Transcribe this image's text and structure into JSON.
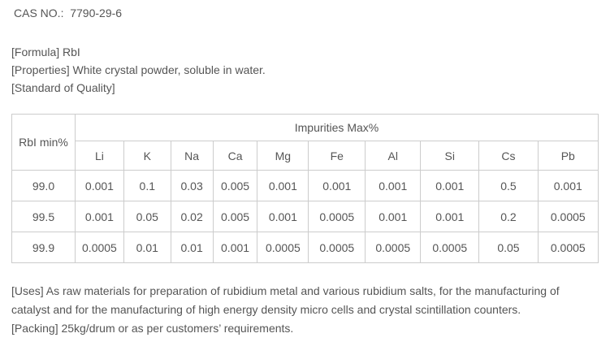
{
  "header": {
    "cas_no": "CAS NO.:  7790-29-6"
  },
  "details": {
    "formula": "[Formula] RbI",
    "properties": "[Properties] White crystal powder, soluble in water.",
    "standard": "[Standard of Quality]"
  },
  "quality_table": {
    "corner_header": "RbI min%",
    "impurities_header": "Impurities Max%",
    "element_columns": [
      "Li",
      "K",
      "Na",
      "Ca",
      "Mg",
      "Fe",
      "Al",
      "Si",
      "Cs",
      "Pb"
    ],
    "column_widths_pct": [
      10.8,
      8.3,
      8.0,
      7.2,
      7.6,
      8.7,
      9.7,
      9.4,
      10.0,
      10.0,
      10.3
    ],
    "rows": [
      {
        "purity": "99.0",
        "values": [
          "0.001",
          "0.1",
          "0.03",
          "0.005",
          "0.001",
          "0.001",
          "0.001",
          "0.001",
          "0.5",
          "0.001"
        ]
      },
      {
        "purity": "99.5",
        "values": [
          "0.001",
          "0.05",
          "0.02",
          "0.005",
          "0.001",
          "0.0005",
          "0.001",
          "0.001",
          "0.2",
          "0.0005"
        ]
      },
      {
        "purity": "99.9",
        "values": [
          "0.0005",
          "0.01",
          "0.01",
          "0.001",
          "0.0005",
          "0.0005",
          "0.0005",
          "0.0005",
          "0.05",
          "0.0005"
        ]
      }
    ]
  },
  "footer": {
    "uses_lines": [
      "[Uses] As raw materials for preparation of rubidium metal and various rubidium salts, for the manufacturing of",
      "catalyst and for the manufacturing of high energy density micro cells and crystal scintillation counters."
    ],
    "packing": "[Packing] 25kg/drum or as per customers’ requirements."
  },
  "colors": {
    "text": "#555555",
    "border": "#cccccc",
    "background": "#ffffff"
  }
}
